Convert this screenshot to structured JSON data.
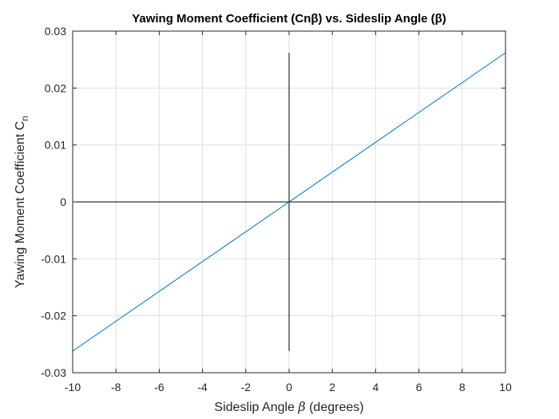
{
  "chart_data": {
    "type": "line",
    "title": "Yawing Moment Coefficient (Cnβ) vs. Sideslip Angle (β)",
    "xlabel": {
      "prefix": "Sideslip Angle ",
      "symbol": "β",
      "suffix": " (degrees)"
    },
    "ylabel": {
      "main": "Yawing Moment Coefficient C",
      "subscript": "n"
    },
    "xlim": [
      -10,
      10
    ],
    "ylim": [
      -0.03,
      0.03
    ],
    "x_ticks": [
      -10,
      -8,
      -6,
      -4,
      -2,
      0,
      2,
      4,
      6,
      8,
      10
    ],
    "y_ticks": [
      -0.03,
      -0.02,
      -0.01,
      0,
      0.01,
      0.02,
      0.03
    ],
    "x_tick_labels": [
      "-10",
      "-8",
      "-6",
      "-4",
      "-2",
      "0",
      "2",
      "4",
      "6",
      "8",
      "10"
    ],
    "y_tick_labels": [
      "-0.03",
      "-0.02",
      "-0.01",
      "0",
      "0.01",
      "0.02",
      "0.03"
    ],
    "grid": true,
    "series": [
      {
        "x": [
          -10,
          10
        ],
        "y": [
          -0.0262,
          0.0262
        ],
        "color": "#0072bd"
      }
    ],
    "reference_lines": [
      {
        "orientation": "horizontal",
        "y": 0,
        "x_range": [
          -10,
          10
        ],
        "color": "#000000"
      },
      {
        "orientation": "vertical",
        "x": 0,
        "y_range": [
          -0.0262,
          0.0262
        ],
        "color": "#000000"
      }
    ]
  }
}
